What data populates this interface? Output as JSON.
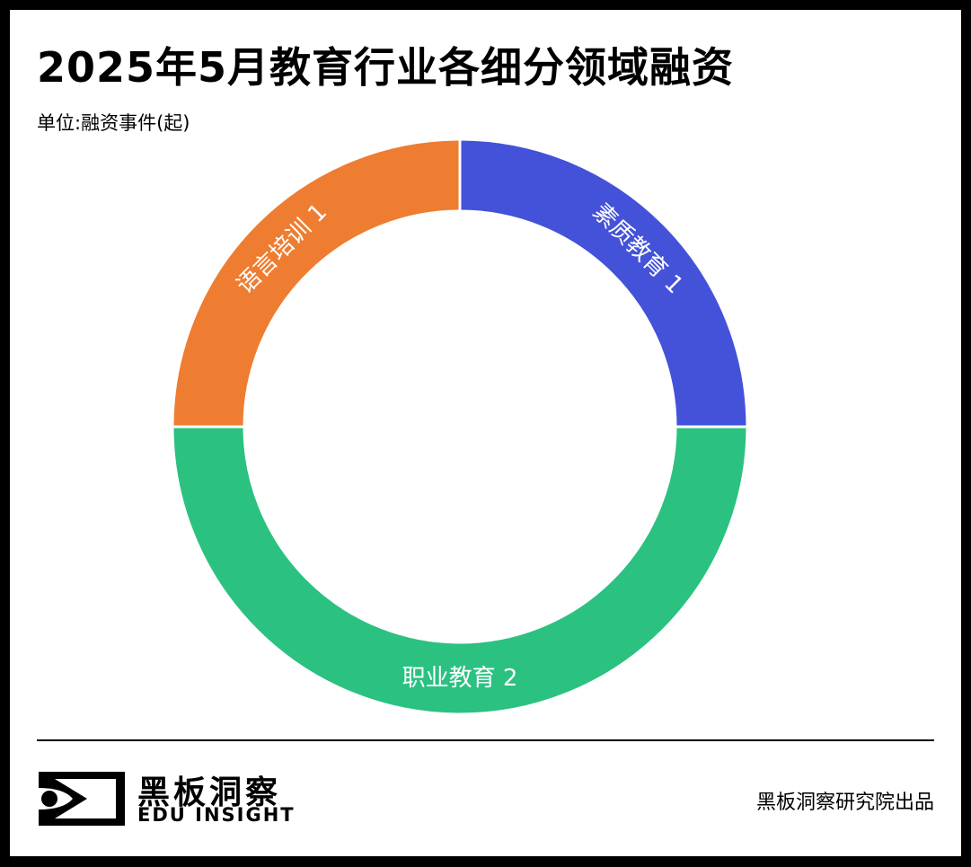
{
  "title": "2025年5月教育行业各细分领域融资",
  "unit_label": "单位:融资事件(起)",
  "chart_data": {
    "type": "pie",
    "title": "2025年5月教育行业各细分领域融资",
    "unit": "单位:融资事件(起)",
    "slices": [
      {
        "label": "素质教育",
        "value": 1,
        "color": "#4352d9",
        "text": "素质教育 1"
      },
      {
        "label": "职业教育",
        "value": 2,
        "color": "#2bc181",
        "text": "职业教育 2"
      },
      {
        "label": "语言培训",
        "value": 1,
        "color": "#ee7d31",
        "text": "语言培训 1"
      }
    ],
    "legend": "none"
  },
  "footer": {
    "logo_cn": "黑板洞察",
    "logo_en": "EDU INSIGHT",
    "credit": "黑板洞察研究院出品"
  }
}
